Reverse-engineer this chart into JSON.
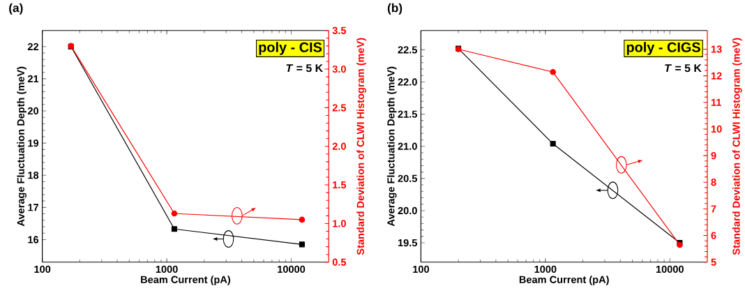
{
  "chart_data": [
    {
      "type": "line",
      "title": "(a)",
      "xlabel": "Beam Current (pA)",
      "ylabel": "Average Fluctuation Depth (meV)",
      "y2label": "Standard Deviation of CLWI Histogram (meV)",
      "log": "x",
      "xlim": [
        100,
        20000
      ],
      "xticks": [
        100,
        1000,
        10000
      ],
      "ylim": [
        15.3,
        22.5
      ],
      "yticks": [
        16,
        17,
        18,
        19,
        20,
        21,
        22
      ],
      "y2lim": [
        0.5,
        3.5
      ],
      "y2ticks": [
        0.5,
        {
          "value": 1.0,
          "label": "1.0"
        },
        1.5,
        {
          "value": 2.0,
          "label": "2.0"
        },
        2.5,
        {
          "value": 3.0,
          "label": "3.0"
        },
        3.5
      ],
      "annotations": [
        "poly - CIS",
        "*T* = 5 K"
      ],
      "series": [
        {
          "color": "#000000",
          "marker": "square",
          "x": [
            170,
            1150,
            12200
          ],
          "values": [
            22.0,
            16.33,
            15.85
          ]
        },
        {
          "color": "#ff0000",
          "marker": "circle",
          "axis": "y2",
          "x": [
            170,
            1150,
            12200
          ],
          "values": [
            3.3,
            1.13,
            1.05
          ]
        }
      ]
    },
    {
      "type": "line",
      "title": "(b)",
      "xlabel": "Beam Current (pA)",
      "ylabel": "Average Fluctuation Depth (meV)",
      "y2label": "Standard Deviation of CLWI Histogram (meV)",
      "log": "x",
      "xlim": [
        100,
        20000
      ],
      "xticks": [
        100,
        1000,
        10000
      ],
      "ylim": [
        19.2,
        22.8
      ],
      "yticks": [
        19.5,
        {
          "value": 20.0,
          "label": "20.0"
        },
        20.5,
        {
          "value": 21.0,
          "label": "21.0"
        },
        21.5,
        {
          "value": 22.0,
          "label": "22.0"
        },
        22.5
      ],
      "y2lim": [
        5,
        13.7
      ],
      "y2ticks": [
        5,
        6,
        7,
        8,
        9,
        10,
        11,
        12,
        13
      ],
      "annotations": [
        "poly - CIGS",
        "*T* = 5 K"
      ],
      "series": [
        {
          "color": "#000000",
          "marker": "square",
          "x": [
            200,
            1150,
            12000
          ],
          "values": [
            22.52,
            21.04,
            19.5
          ]
        },
        {
          "color": "#ff0000",
          "marker": "circle",
          "axis": "y2",
          "x": [
            200,
            1150,
            12000
          ],
          "values": [
            13.0,
            12.14,
            5.65
          ]
        }
      ]
    }
  ]
}
